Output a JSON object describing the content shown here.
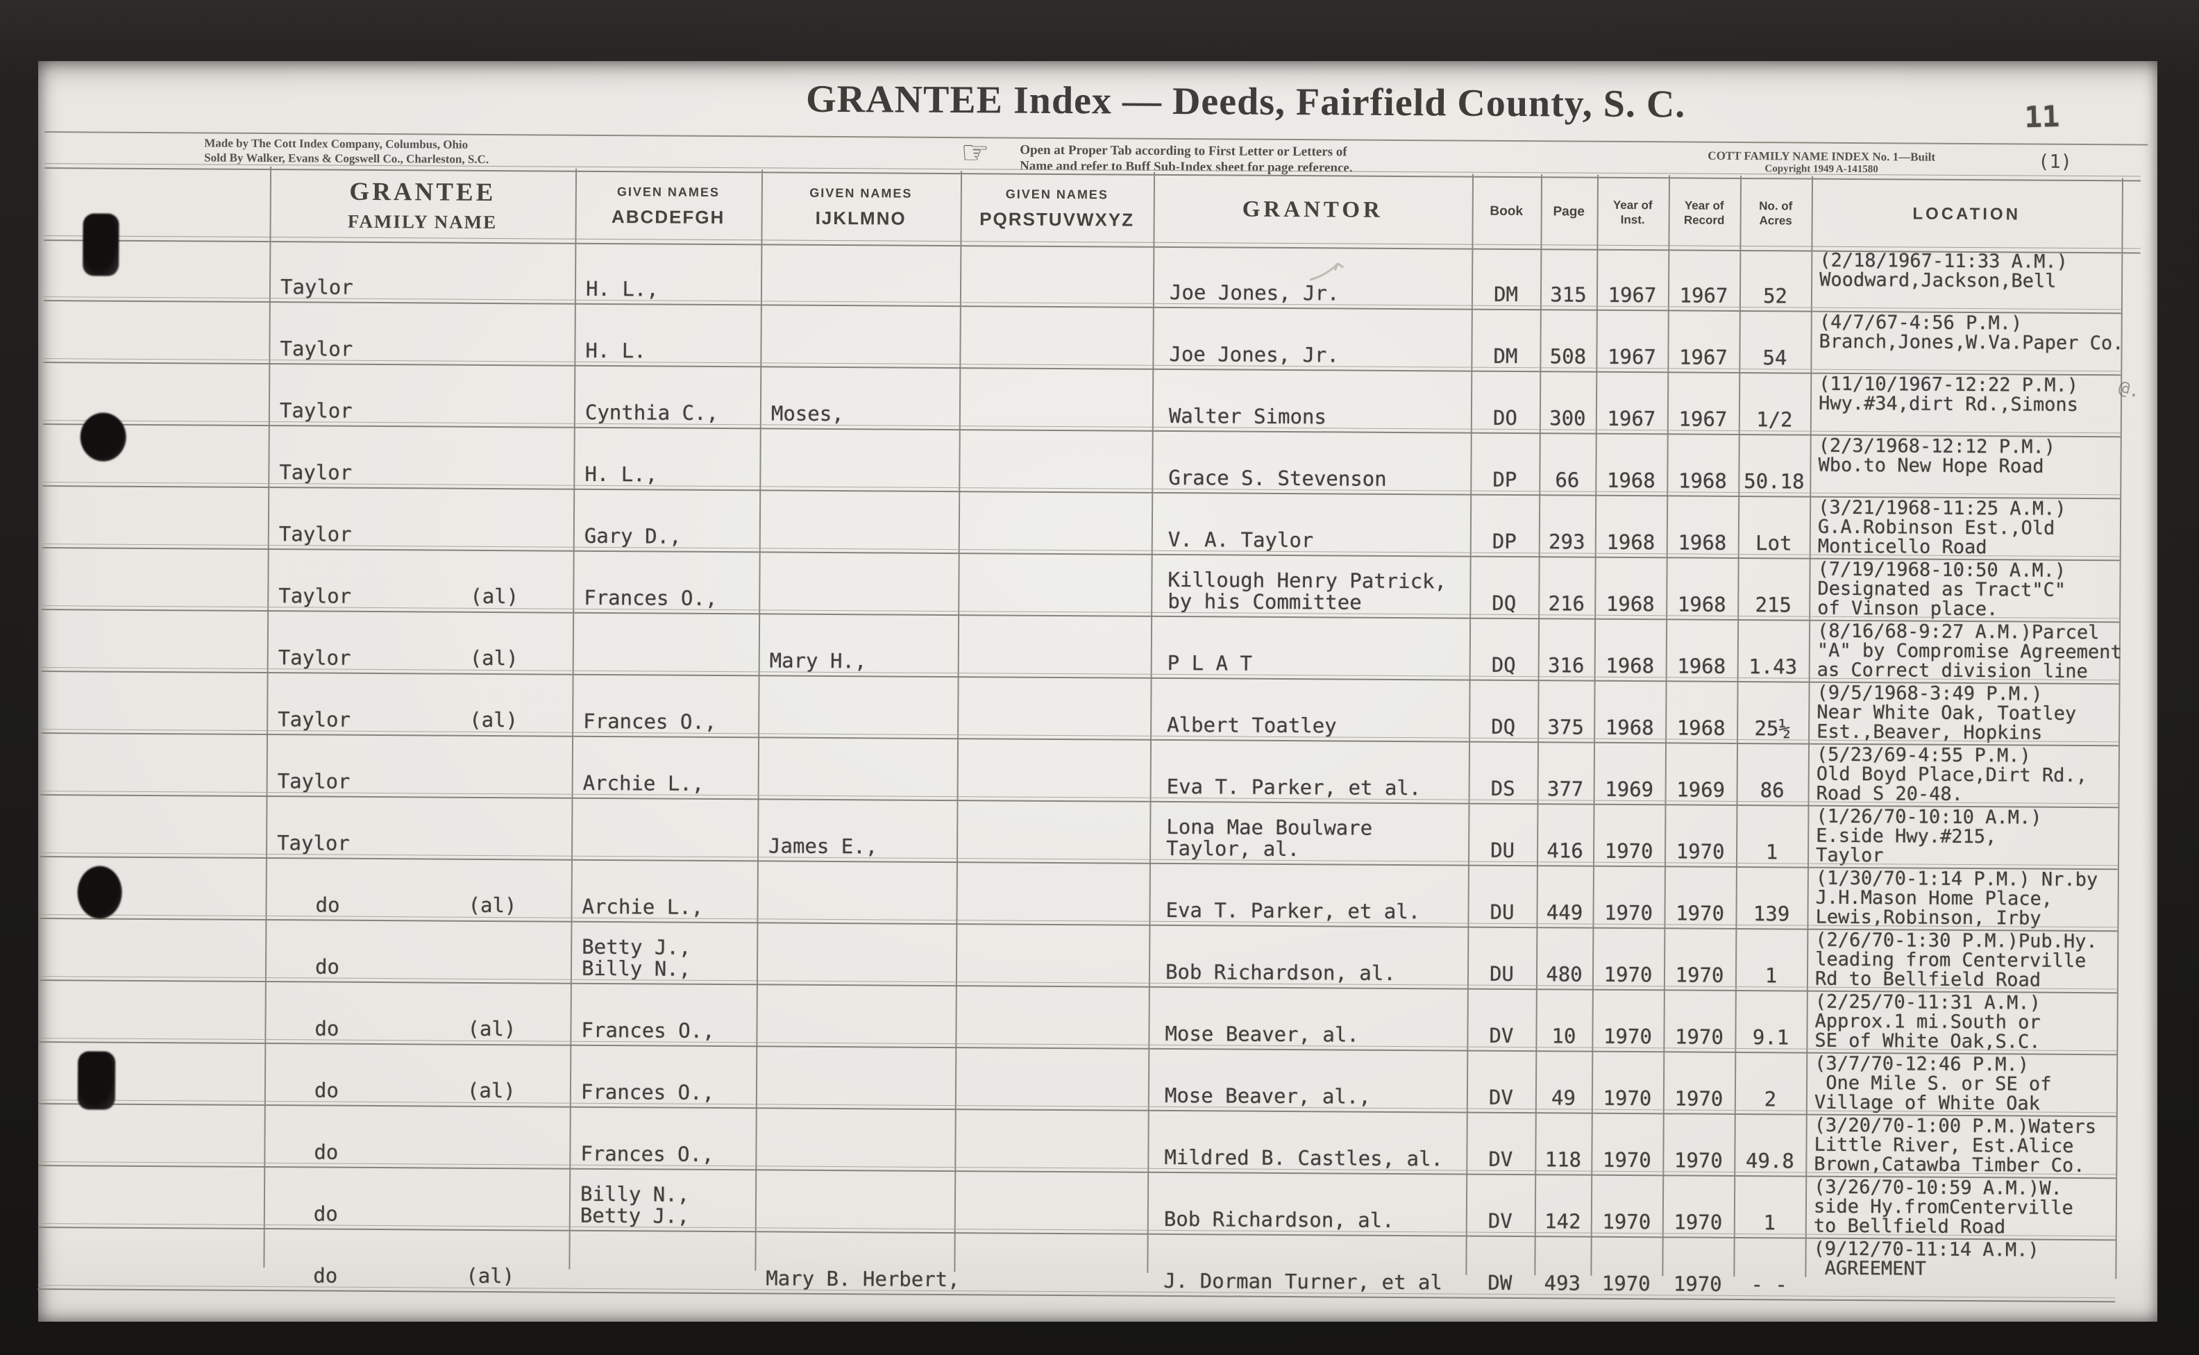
{
  "page": {
    "title": "GRANTEE Index — Deeds, Fairfield County, S. C.",
    "pencil_page_number": "11",
    "page_number_paren": "(1)",
    "maker_line1": "Made by The Cott Index Company, Columbus, Ohio",
    "maker_line2": "Sold By Walker, Evans & Cogswell Co., Charleston, S.C.",
    "pointing_hand_icon": "☞",
    "tab_note_line1": "Open at Proper Tab according to First Letter or Letters of",
    "tab_note_line2": "Name and refer to Buff Sub-Index sheet for page reference.",
    "index_note_line1": "COTT FAMILY NAME INDEX No. 1—Built",
    "index_note_line2": "Copyright 1949 A-141580"
  },
  "columns": {
    "grantee_line1": "GRANTEE",
    "grantee_line2": "FAMILY NAME",
    "given_label": "GIVEN NAMES",
    "given_abc": "ABCDEFGH",
    "given_ijk": "IJKLMNO",
    "given_pqr": "PQRSTUVWXYZ",
    "grantor": "GRANTOR",
    "book": "Book",
    "page": "Page",
    "year_inst1": "Year of",
    "year_inst2": "Inst.",
    "year_record1": "Year of",
    "year_record2": "Record",
    "acres1": "No. of",
    "acres2": "Acres",
    "location": "LOCATION"
  },
  "rows": [
    {
      "family": "Taylor",
      "suffix": "",
      "given_a": "H. L.,",
      "given_i": "",
      "given_p": "",
      "grantor": [
        "Joe Jones, Jr."
      ],
      "book": "DM",
      "page": "315",
      "year_inst": "1967",
      "year_record": "1967",
      "acres": "52",
      "location": [
        "(2/18/1967-11:33 A.M.)",
        "Woodward,Jackson,Bell"
      ]
    },
    {
      "family": "Taylor",
      "suffix": "",
      "given_a": "H. L.",
      "given_i": "",
      "given_p": "",
      "grantor": [
        "Joe Jones, Jr."
      ],
      "book": "DM",
      "page": "508",
      "year_inst": "1967",
      "year_record": "1967",
      "acres": "54",
      "location": [
        "(4/7/67-4:56 P.M.)",
        "Branch,Jones,W.Va.Paper Co."
      ]
    },
    {
      "family": "Taylor",
      "suffix": "",
      "given_a": "Cynthia C.,",
      "given_i": "Moses,",
      "given_p": "",
      "grantor": [
        "Walter Simons"
      ],
      "book": "DO",
      "page": "300",
      "year_inst": "1967",
      "year_record": "1967",
      "acres": "1/2",
      "location": [
        "(11/10/1967-12:22 P.M.)",
        "Hwy.#34,dirt Rd.,Simons"
      ]
    },
    {
      "family": "Taylor",
      "suffix": "",
      "given_a": "H. L.,",
      "given_i": "",
      "given_p": "",
      "grantor": [
        "Grace S. Stevenson"
      ],
      "book": "DP",
      "page": "66",
      "year_inst": "1968",
      "year_record": "1968",
      "acres": "50.18",
      "location": [
        "(2/3/1968-12:12 P.M.)",
        "Wbo.to New Hope Road"
      ]
    },
    {
      "family": "Taylor",
      "suffix": "",
      "given_a": "Gary D.,",
      "given_i": "",
      "given_p": "",
      "grantor": [
        "V. A. Taylor"
      ],
      "book": "DP",
      "page": "293",
      "year_inst": "1968",
      "year_record": "1968",
      "acres": "Lot",
      "location": [
        "(3/21/1968-11:25 A.M.)",
        "G.A.Robinson Est.,Old",
        "Monticello Road"
      ]
    },
    {
      "family": "Taylor",
      "suffix": "(al)",
      "given_a": "Frances O.,",
      "given_i": "",
      "given_p": "",
      "grantor": [
        "Killough Henry Patrick,",
        "by his Committee"
      ],
      "book": "DQ",
      "page": "216",
      "year_inst": "1968",
      "year_record": "1968",
      "acres": "215",
      "location": [
        "(7/19/1968-10:50 A.M.)",
        "Designated as Tract\"C\"",
        "of Vinson place."
      ]
    },
    {
      "family": "Taylor",
      "suffix": "(al)",
      "given_a": "",
      "given_i": "Mary H.,",
      "given_p": "",
      "grantor": [
        "P L A T"
      ],
      "book": "DQ",
      "page": "316",
      "year_inst": "1968",
      "year_record": "1968",
      "acres": "1.43",
      "location": [
        "(8/16/68-9:27 A.M.)Parcel",
        "\"A\" by Compromise Agreement",
        "as Correct division line"
      ]
    },
    {
      "family": "Taylor",
      "suffix": "(al)",
      "given_a": "Frances O.,",
      "given_i": "",
      "given_p": "",
      "grantor": [
        "Albert Toatley"
      ],
      "book": "DQ",
      "page": "375",
      "year_inst": "1968",
      "year_record": "1968",
      "acres": "25½",
      "location": [
        "(9/5/1968-3:49 P.M.)",
        "Near White Oak, Toatley",
        "Est.,Beaver, Hopkins"
      ]
    },
    {
      "family": "Taylor",
      "suffix": "",
      "given_a": "Archie L.,",
      "given_i": "",
      "given_p": "",
      "grantor": [
        "Eva T. Parker, et al."
      ],
      "book": "DS",
      "page": "377",
      "year_inst": "1969",
      "year_record": "1969",
      "acres": "86",
      "location": [
        "(5/23/69-4:55 P.M.)",
        "Old Boyd Place,Dirt Rd.,",
        "Road S 20-48."
      ]
    },
    {
      "family": "Taylor",
      "suffix": "",
      "given_a": "",
      "given_i": "James E.,",
      "given_p": "",
      "grantor": [
        "Lona Mae Boulware",
        "Taylor, al."
      ],
      "book": "DU",
      "page": "416",
      "year_inst": "1970",
      "year_record": "1970",
      "acres": "1",
      "location": [
        "(1/26/70-10:10 A.M.)",
        "E.side Hwy.#215,",
        "Taylor"
      ]
    },
    {
      "family": "do",
      "suffix": "(al)",
      "given_a": "Archie L.,",
      "given_i": "",
      "given_p": "",
      "grantor": [
        "Eva T. Parker, et al."
      ],
      "book": "DU",
      "page": "449",
      "year_inst": "1970",
      "year_record": "1970",
      "acres": "139",
      "location": [
        "(1/30/70-1:14 P.M.) Nr.by",
        "J.H.Mason Home Place,",
        "Lewis,Robinson, Irby"
      ]
    },
    {
      "family": "do",
      "suffix": "",
      "given_a": [
        "Betty J.,",
        "Billy N.,"
      ],
      "given_i": "",
      "given_p": "",
      "grantor": [
        "Bob Richardson, al."
      ],
      "book": "DU",
      "page": "480",
      "year_inst": "1970",
      "year_record": "1970",
      "acres": "1",
      "location": [
        "(2/6/70-1:30 P.M.)Pub.Hy.",
        "leading from Centerville",
        "Rd to Bellfield Road"
      ]
    },
    {
      "family": "do",
      "suffix": "(al)",
      "given_a": "Frances O.,",
      "given_i": "",
      "given_p": "",
      "grantor": [
        "Mose Beaver, al."
      ],
      "book": "DV",
      "page": "10",
      "year_inst": "1970",
      "year_record": "1970",
      "acres": "9.1",
      "location": [
        "(2/25/70-11:31 A.M.)",
        "Approx.1 mi.South or",
        "SE of White Oak,S.C."
      ]
    },
    {
      "family": "do",
      "suffix": "(al)",
      "given_a": "Frances O.,",
      "given_i": "",
      "given_p": "",
      "grantor": [
        "Mose Beaver, al.,"
      ],
      "book": "DV",
      "page": "49",
      "year_inst": "1970",
      "year_record": "1970",
      "acres": "2",
      "location": [
        "(3/7/70-12:46 P.M.)",
        " One Mile S. or SE of",
        "Village of White Oak"
      ]
    },
    {
      "family": "do",
      "suffix": "",
      "given_a": "Frances O.,",
      "given_i": "",
      "given_p": "",
      "grantor": [
        "Mildred B. Castles, al."
      ],
      "book": "DV",
      "page": "118",
      "year_inst": "1970",
      "year_record": "1970",
      "acres": "49.8",
      "location": [
        "(3/20/70-1:00 P.M.)Waters",
        "Little River, Est.Alice",
        "Brown,Catawba Timber Co."
      ]
    },
    {
      "family": "do",
      "suffix": "",
      "given_a": [
        "Billy N.,",
        "Betty J.,"
      ],
      "given_i": "",
      "given_p": "",
      "grantor": [
        "Bob Richardson, al."
      ],
      "book": "DV",
      "page": "142",
      "year_inst": "1970",
      "year_record": "1970",
      "acres": "1",
      "location": [
        "(3/26/70-10:59 A.M.)W.",
        "side Hy.fromCenterville",
        "to Bellfield Road"
      ]
    },
    {
      "family": "do",
      "suffix": "(al)",
      "given_a": "",
      "given_i": "Mary B. Herbert,",
      "given_p": "",
      "grantor": [
        "J. Dorman Turner, et al"
      ],
      "book": "DW",
      "page": "493",
      "year_inst": "1970",
      "year_record": "1970",
      "acres": "- -",
      "location": [
        "(9/12/70-11:14 A.M.)",
        " AGREEMENT"
      ]
    }
  ]
}
